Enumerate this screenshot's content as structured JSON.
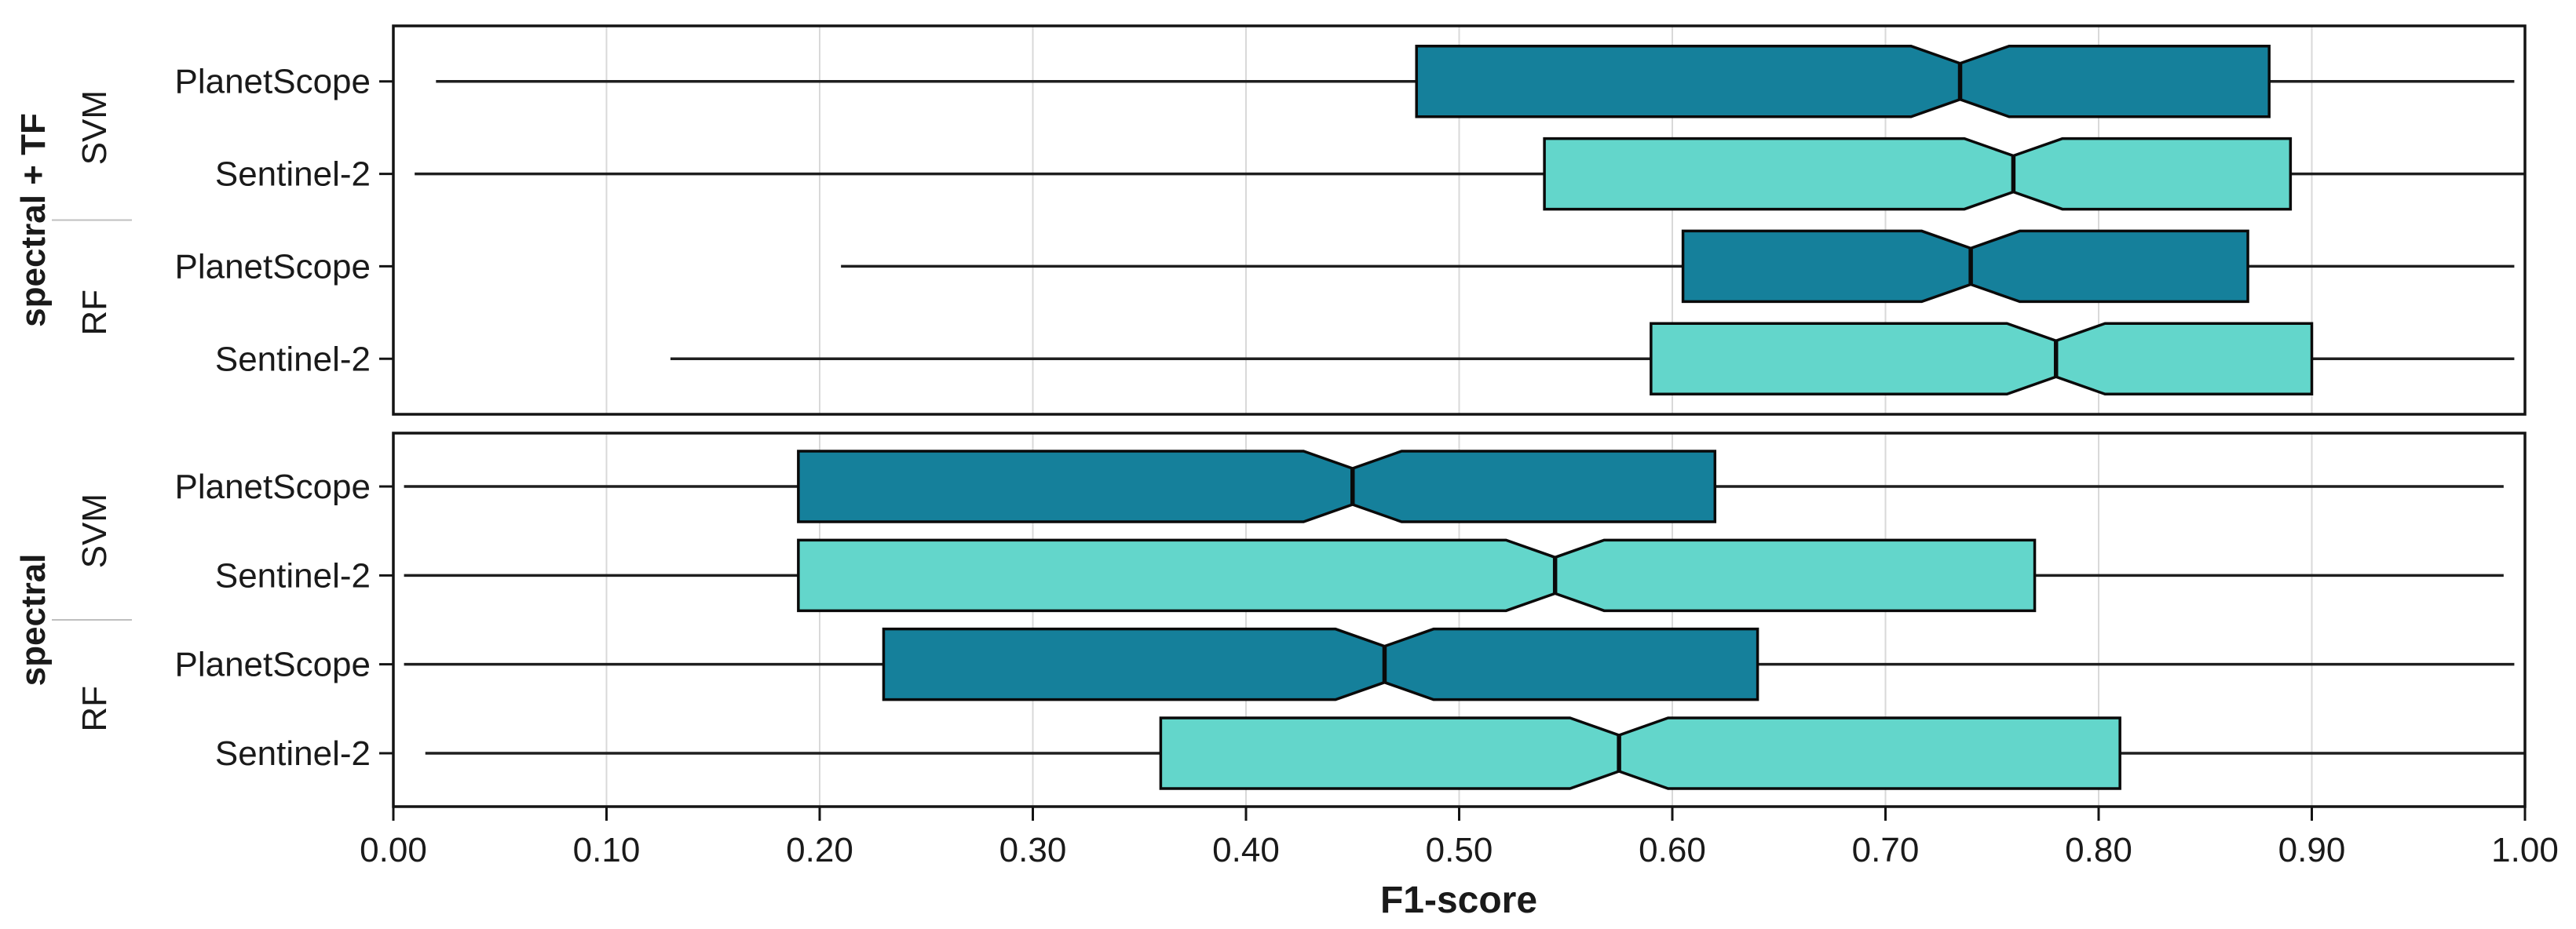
{
  "figure": {
    "background": "#ffffff"
  },
  "chart_data": {
    "type": "boxplot",
    "orientation": "horizontal",
    "title": "",
    "xlabel": "F1-score",
    "ylabel": "",
    "xlim": [
      0.0,
      1.0
    ],
    "x_tick_values": [
      0.0,
      0.1,
      0.2,
      0.3,
      0.4,
      0.5,
      0.6,
      0.7,
      0.8,
      0.9,
      1.0
    ],
    "x_tick_labels": [
      "0.00",
      "0.10",
      "0.20",
      "0.30",
      "0.40",
      "0.50",
      "0.60",
      "0.70",
      "0.80",
      "0.90",
      "1.00"
    ],
    "grid": "vertical major gridlines only",
    "legend": "none",
    "notch": true,
    "colors": {
      "planetscope_fill": "#15809B",
      "sentinel2_fill": "#63D6CB",
      "box_border": "#0a0a0a",
      "median": "#0a0a0a",
      "whisker": "#1f1f1f",
      "gridline": "#d9d9d9",
      "panel_border": "#141414",
      "tick": "#141414",
      "text": "#1a1a1a",
      "strip_separator": "#bfbfbf"
    },
    "panels": [
      {
        "facet": "spectral + TF",
        "groups": [
          {
            "classifier": "SVM",
            "boxes": [
              {
                "label": "PlanetScope",
                "color_key": "planetscope_fill",
                "whisker_low": 0.02,
                "q1": 0.48,
                "median": 0.735,
                "q3": 0.88,
                "whisker_high": 0.995,
                "notch_low": 0.712,
                "notch_high": 0.758
              },
              {
                "label": "Sentinel-2",
                "color_key": "sentinel2_fill",
                "whisker_low": 0.01,
                "q1": 0.54,
                "median": 0.76,
                "q3": 0.89,
                "whisker_high": 1.0,
                "notch_low": 0.737,
                "notch_high": 0.783
              }
            ]
          },
          {
            "classifier": "RF",
            "boxes": [
              {
                "label": "PlanetScope",
                "color_key": "planetscope_fill",
                "whisker_low": 0.21,
                "q1": 0.605,
                "median": 0.74,
                "q3": 0.87,
                "whisker_high": 0.995,
                "notch_low": 0.717,
                "notch_high": 0.763
              },
              {
                "label": "Sentinel-2",
                "color_key": "sentinel2_fill",
                "whisker_low": 0.13,
                "q1": 0.59,
                "median": 0.78,
                "q3": 0.9,
                "whisker_high": 0.995,
                "notch_low": 0.757,
                "notch_high": 0.803
              }
            ]
          }
        ]
      },
      {
        "facet": "spectral",
        "groups": [
          {
            "classifier": "SVM",
            "boxes": [
              {
                "label": "PlanetScope",
                "color_key": "planetscope_fill",
                "whisker_low": 0.005,
                "q1": 0.19,
                "median": 0.45,
                "q3": 0.62,
                "whisker_high": 0.99,
                "notch_low": 0.427,
                "notch_high": 0.473
              },
              {
                "label": "Sentinel-2",
                "color_key": "sentinel2_fill",
                "whisker_low": 0.005,
                "q1": 0.19,
                "median": 0.545,
                "q3": 0.77,
                "whisker_high": 0.99,
                "notch_low": 0.522,
                "notch_high": 0.568
              }
            ]
          },
          {
            "classifier": "RF",
            "boxes": [
              {
                "label": "PlanetScope",
                "color_key": "planetscope_fill",
                "whisker_low": 0.005,
                "q1": 0.23,
                "median": 0.465,
                "q3": 0.64,
                "whisker_high": 0.995,
                "notch_low": 0.442,
                "notch_high": 0.488
              },
              {
                "label": "Sentinel-2",
                "color_key": "sentinel2_fill",
                "whisker_low": 0.015,
                "q1": 0.36,
                "median": 0.575,
                "q3": 0.81,
                "whisker_high": 1.0,
                "notch_low": 0.552,
                "notch_high": 0.598
              }
            ]
          }
        ]
      }
    ]
  }
}
